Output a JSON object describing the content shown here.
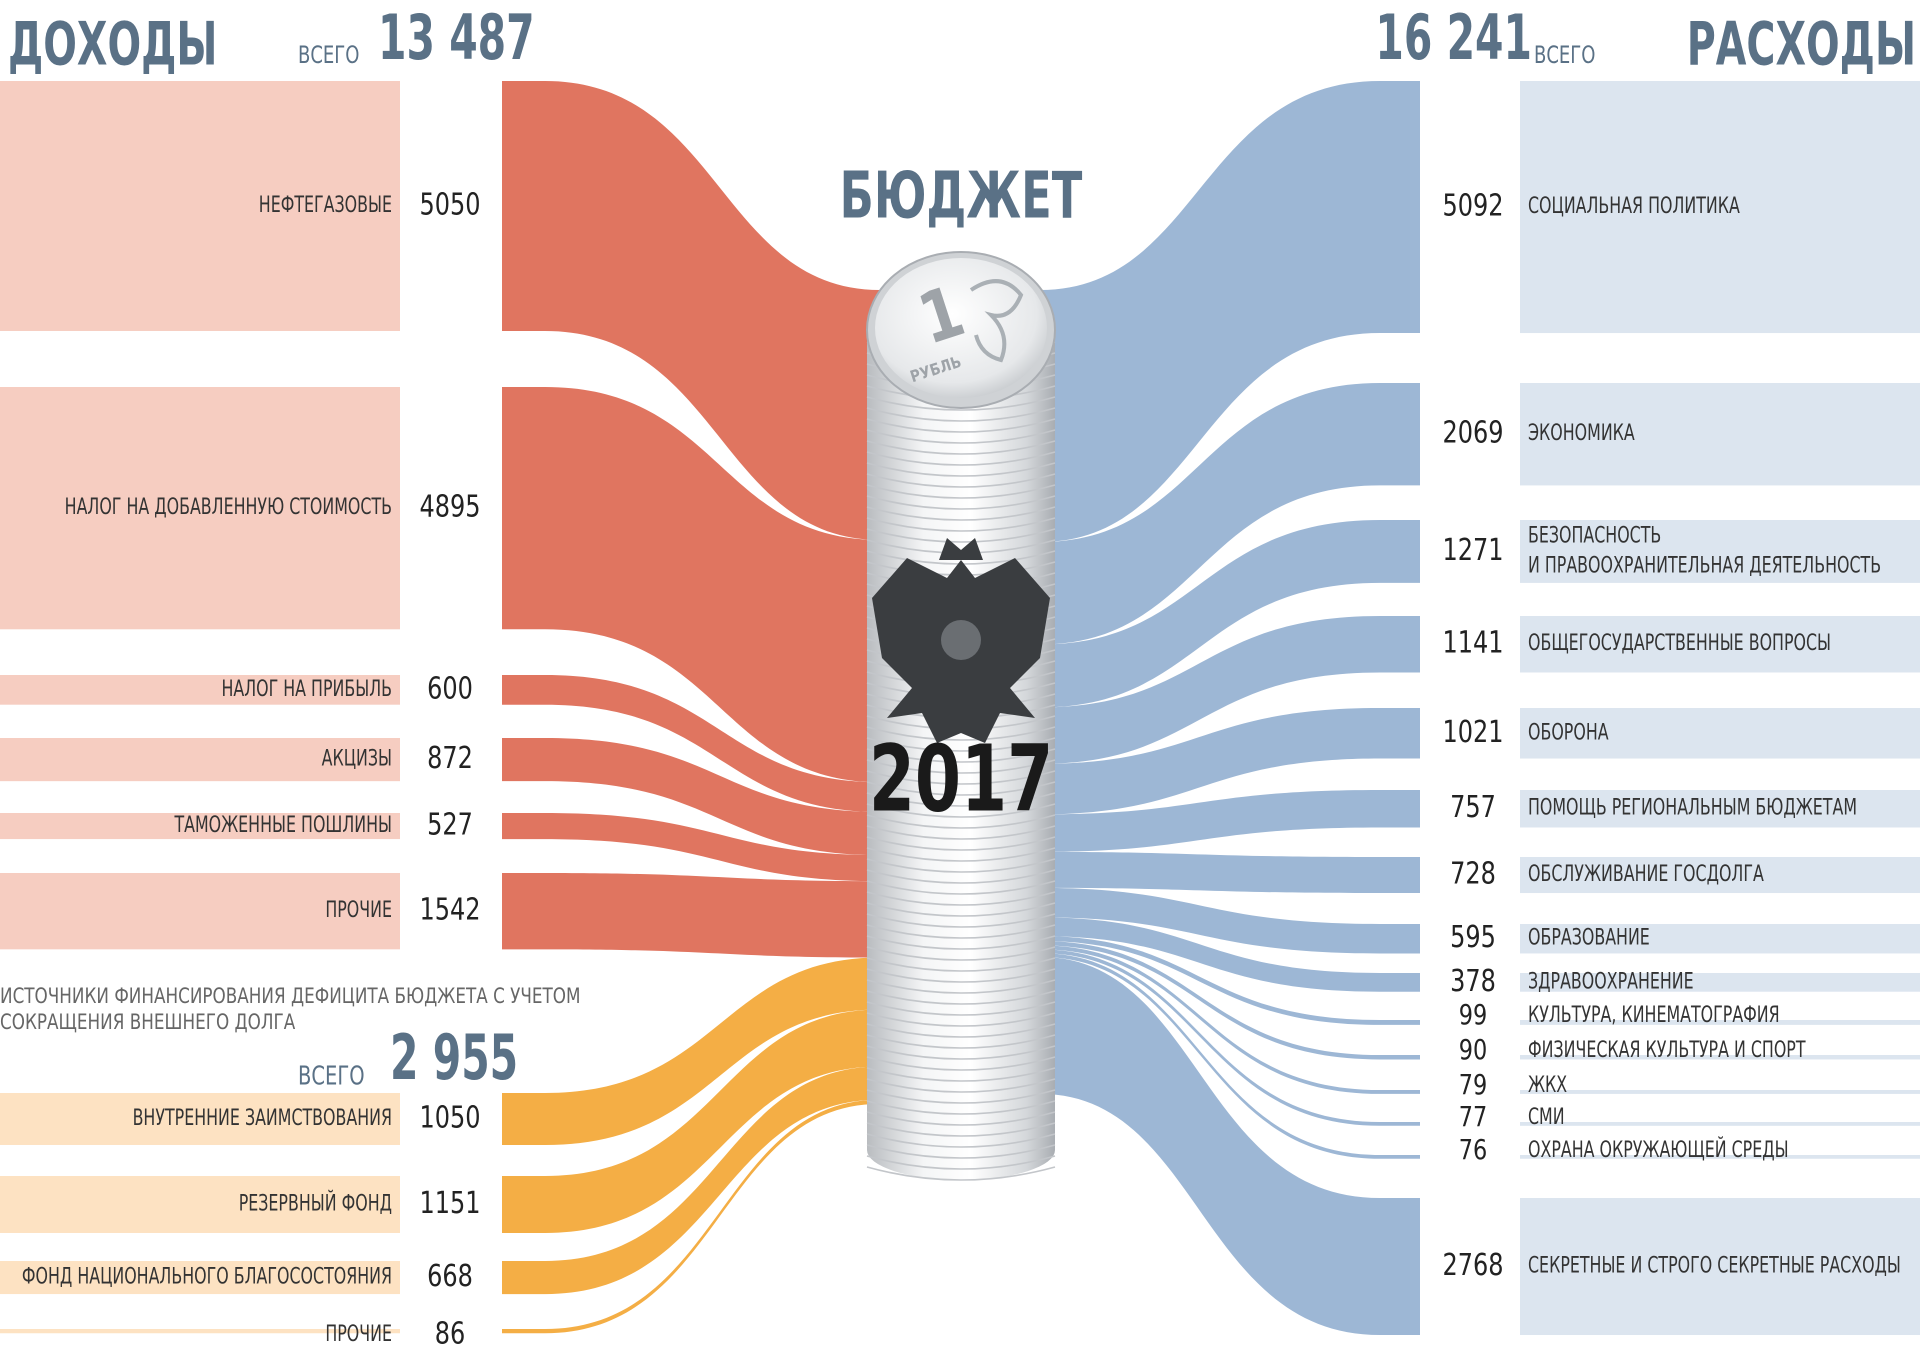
{
  "chart_data": {
    "type": "sankey",
    "title": "БЮДЖЕТ",
    "year": "2017",
    "coin": {
      "denomination": "1",
      "text": "РУБЛЬ"
    },
    "income": {
      "title": "ДОХОДЫ",
      "total_caption": "ВСЕГО",
      "total": {
        "value": 13487,
        "label": "13 487"
      },
      "color": "#e07560",
      "box_color": "#f6cdc1",
      "items": [
        {
          "label": "НЕФТЕГАЗОВЫЕ",
          "value": 5050
        },
        {
          "label": "НАЛОГ НА ДОБАВЛЕННУЮ СТОИМОСТЬ",
          "value": 4895
        },
        {
          "label": "НАЛОГ НА ПРИБЫЛЬ",
          "value": 600
        },
        {
          "label": "АКЦИЗЫ",
          "value": 872
        },
        {
          "label": "ТАМОЖЕННЫЕ ПОШЛИНЫ",
          "value": 527
        },
        {
          "label": "ПРОЧИЕ",
          "value": 1542
        }
      ]
    },
    "financing": {
      "title": [
        "ИСТОЧНИКИ ФИНАНСИРОВАНИЯ ДЕФИЦИТА БЮДЖЕТА С УЧЕТОМ",
        "СОКРАЩЕНИЯ ВНЕШНЕГО ДОЛГА"
      ],
      "total_caption": "ВСЕГО",
      "total": {
        "value": 2955,
        "label": "2 955"
      },
      "color": "#f4ae45",
      "box_color": "#fde2c2",
      "items": [
        {
          "label": "ВНУТРЕННИЕ ЗАИМСТВОВАНИЯ",
          "value": 1050
        },
        {
          "label": "РЕЗЕРВНЫЙ ФОНД",
          "value": 1151
        },
        {
          "label": "ФОНД НАЦИОНАЛЬНОГО БЛАГОСОСТОЯНИЯ",
          "value": 668
        },
        {
          "label": "ПРОЧИЕ",
          "value": 86
        }
      ]
    },
    "expenses": {
      "title": "РАСХОДЫ",
      "total_caption": "ВСЕГО",
      "total": {
        "value": 16241,
        "label": "16 241"
      },
      "color": "#9db7d5",
      "box_color": "#dce5ef",
      "items": [
        {
          "label": "СОЦИАЛЬНАЯ ПОЛИТИКА",
          "value": 5092
        },
        {
          "label": "ЭКОНОМИКА",
          "value": 2069
        },
        {
          "label": [
            "БЕЗОПАСНОСТЬ",
            "И ПРАВООХРАНИТЕЛЬНАЯ ДЕЯТЕЛЬНОСТЬ"
          ],
          "value": 1271
        },
        {
          "label": "ОБЩЕГОСУДАРСТВЕННЫЕ ВОПРОСЫ",
          "value": 1141
        },
        {
          "label": "ОБОРОНА",
          "value": 1021
        },
        {
          "label": "ПОМОЩЬ РЕГИОНАЛЬНЫМ БЮДЖЕТАМ",
          "value": 757
        },
        {
          "label": "ОБСЛУЖИВАНИЕ ГОСДОЛГА",
          "value": 728
        },
        {
          "label": "ОБРАЗОВАНИЕ",
          "value": 595
        },
        {
          "label": "ЗДРАВООХРАНЕНИЕ",
          "value": 378
        },
        {
          "label": "КУЛЬТУРА, КИНЕМАТОГРАФИЯ",
          "value": 99
        },
        {
          "label": "ФИЗИЧЕСКАЯ КУЛЬТУРА И СПОРТ",
          "value": 90
        },
        {
          "label": "ЖКХ",
          "value": 79
        },
        {
          "label": "СМИ",
          "value": 77
        },
        {
          "label": "ОХРАНА ОКРУЖАЮЩЕЙ СРЕДЫ",
          "value": 76
        },
        {
          "label": "СЕКРЕТНЫЕ И СТРОГО СЕКРЕТНЫЕ РАСХОДЫ",
          "value": 2768
        }
      ]
    }
  }
}
